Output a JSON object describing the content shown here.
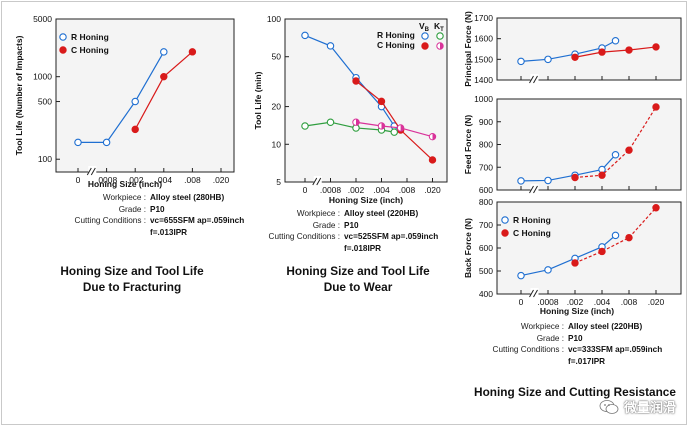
{
  "charts": {
    "fracturing": {
      "title_lines": [
        "Honing Size and Tool Life",
        "Due to Fracturing"
      ],
      "xlabel": "Honing Size (inch)",
      "ylabel": "Tool Life (Number of Impacts)",
      "info": [
        {
          "k": "Workpiece :",
          "v": "Alloy steel  (280HB)"
        },
        {
          "k": "Grade :",
          "v": "P10"
        },
        {
          "k": "Cutting Conditions :",
          "v": "vc=655SFM  ap=.059inch"
        },
        {
          "k": "",
          "v": "f=.013IPR"
        }
      ]
    },
    "wear": {
      "title_lines": [
        "Honing Size and Tool Life",
        "Due to Wear"
      ],
      "xlabel": "Honing Size (inch)",
      "ylabel": "Tool Life (min)",
      "legend_header": [
        "V",
        "B",
        "K",
        "T"
      ],
      "info": [
        {
          "k": "Workpiece :",
          "v": "Alloy steel  (220HB)"
        },
        {
          "k": "Grade :",
          "v": "P10"
        },
        {
          "k": "Cutting Conditions :",
          "v": "vc=525SFM  ap=.059inch"
        },
        {
          "k": "",
          "v": "f=.018IPR"
        }
      ]
    },
    "forces": {
      "title_line": "Honing Size and Cutting Resistance",
      "xlabel": "Honing Size (inch)",
      "info": [
        {
          "k": "Workpiece :",
          "v": "Alloy steel  (220HB)"
        },
        {
          "k": "Grade :",
          "v": "P10"
        },
        {
          "k": "Cutting Conditions :",
          "v": "vc=333SFM  ap=.059inch"
        },
        {
          "k": "",
          "v": "f=.017IPR"
        }
      ]
    }
  },
  "colors": {
    "r_honing": "#1f6fd1",
    "c_honing": "#d91a1a",
    "vb": "#2f9e3f",
    "kt": "#d9339a",
    "axis": "#222222",
    "bg": "#f5f5f5"
  },
  "watermark": {
    "text": "微量润滑",
    "icon": "wechat-icon"
  },
  "chart_data": [
    {
      "type": "line",
      "id": "fracturing",
      "x_tick_labels": [
        "0",
        ".0008",
        ".002",
        ".004",
        ".008",
        ".020"
      ],
      "x_positions": [
        0,
        0.0008,
        0.002,
        0.004,
        0.008,
        0.02
      ],
      "y_scale": "log",
      "ylim": [
        70,
        5000
      ],
      "y_tick_labels": [
        "100",
        "500",
        "1000",
        "5000"
      ],
      "y_ticks": [
        100,
        500,
        1000,
        5000
      ],
      "series": [
        {
          "name": "R Honing",
          "marker": "open",
          "x": [
            0,
            0.0008,
            0.002,
            0.004
          ],
          "y": [
            160,
            160,
            500,
            2000
          ]
        },
        {
          "name": "C Honing",
          "marker": "filled",
          "x": [
            0.002,
            0.004,
            0.008
          ],
          "y": [
            230,
            1000,
            2000
          ]
        }
      ],
      "legend_position": "top-left"
    },
    {
      "type": "line",
      "id": "wear",
      "x_tick_labels": [
        "0",
        ".0008",
        ".002",
        ".004",
        ".008",
        ".020"
      ],
      "x_positions": [
        0,
        0.0008,
        0.002,
        0.004,
        0.008,
        0.02
      ],
      "y_scale": "log",
      "ylim": [
        5,
        100
      ],
      "y_tick_labels": [
        "5",
        "10",
        "20",
        "50",
        "100"
      ],
      "y_ticks": [
        5,
        10,
        20,
        50,
        100
      ],
      "series": [
        {
          "name": "R Honing V_B",
          "marker": "open",
          "x": [
            0,
            0.0008,
            0.002,
            0.004,
            0.006
          ],
          "y": [
            74,
            61,
            34,
            20,
            14
          ]
        },
        {
          "name": "C Honing V_B",
          "marker": "filled",
          "x": [
            0.002,
            0.004,
            0.007,
            0.02
          ],
          "y": [
            32,
            22,
            13,
            7.5
          ]
        },
        {
          "name": "R Honing K_T",
          "marker": "open",
          "x": [
            0,
            0.0008,
            0.002,
            0.004,
            0.006
          ],
          "y": [
            14,
            15,
            13.5,
            13,
            12.5
          ]
        },
        {
          "name": "C Honing K_T",
          "marker": "half",
          "x": [
            0.002,
            0.004,
            0.007,
            0.02
          ],
          "y": [
            15,
            14,
            13.5,
            11.5
          ]
        }
      ],
      "legend_position": "top-right"
    },
    {
      "type": "line",
      "id": "principal_force",
      "ylabel": "Principal Force (N)",
      "x_tick_labels": [
        "0",
        ".0008",
        ".002",
        ".004",
        ".008",
        ".020"
      ],
      "x_positions": [
        0,
        0.0008,
        0.002,
        0.004,
        0.008,
        0.02
      ],
      "ylim": [
        1400,
        1700
      ],
      "y_tick_labels": [
        "1400",
        "1500",
        "1600",
        "1700"
      ],
      "y_ticks": [
        1400,
        1500,
        1600,
        1700
      ],
      "series": [
        {
          "name": "R Honing",
          "marker": "open",
          "x": [
            0,
            0.0008,
            0.002,
            0.004,
            0.006
          ],
          "y": [
            1490,
            1500,
            1525,
            1555,
            1590
          ]
        },
        {
          "name": "C Honing",
          "marker": "filled",
          "x": [
            0.002,
            0.004,
            0.008,
            0.02
          ],
          "y": [
            1510,
            1535,
            1545,
            1560
          ]
        }
      ]
    },
    {
      "type": "line",
      "id": "feed_force",
      "ylabel": "Feed Force (N)",
      "x_tick_labels": [
        "0",
        ".0008",
        ".002",
        ".004",
        ".008",
        ".020"
      ],
      "x_positions": [
        0,
        0.0008,
        0.002,
        0.004,
        0.008,
        0.02
      ],
      "ylim": [
        600,
        1000
      ],
      "y_tick_labels": [
        "600",
        "700",
        "800",
        "900",
        "1000"
      ],
      "y_ticks": [
        600,
        700,
        800,
        900,
        1000
      ],
      "series": [
        {
          "name": "R Honing",
          "marker": "open",
          "x": [
            0,
            0.0008,
            0.002,
            0.004,
            0.006
          ],
          "y": [
            640,
            642,
            665,
            690,
            755
          ]
        },
        {
          "name": "C Honing",
          "marker": "filled",
          "x": [
            0.002,
            0.004,
            0.008,
            0.02
          ],
          "y": [
            655,
            665,
            775,
            965
          ]
        }
      ]
    },
    {
      "type": "line",
      "id": "back_force",
      "ylabel": "Back Force (N)",
      "x_tick_labels": [
        "0",
        ".0008",
        ".002",
        ".004",
        ".008",
        ".020"
      ],
      "x_positions": [
        0,
        0.0008,
        0.002,
        0.004,
        0.008,
        0.02
      ],
      "ylim": [
        400,
        800
      ],
      "y_tick_labels": [
        "400",
        "500",
        "600",
        "700",
        "800"
      ],
      "y_ticks": [
        400,
        500,
        600,
        700,
        800
      ],
      "series": [
        {
          "name": "R Honing",
          "marker": "open",
          "x": [
            0,
            0.0008,
            0.002,
            0.004,
            0.006
          ],
          "y": [
            480,
            505,
            555,
            605,
            655
          ]
        },
        {
          "name": "C Honing",
          "marker": "filled",
          "x": [
            0.002,
            0.004,
            0.008,
            0.02
          ],
          "y": [
            535,
            585,
            645,
            775
          ]
        }
      ],
      "legend_position": "top-left"
    }
  ]
}
